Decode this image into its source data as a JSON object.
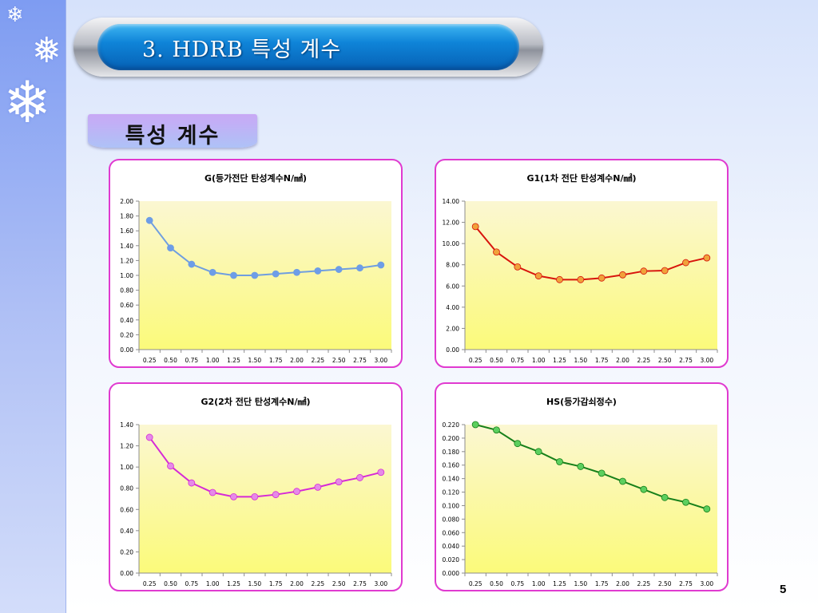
{
  "slide": {
    "title": "3. HDRB  특성 계수",
    "section_label": "특성 계수",
    "page_number": "5"
  },
  "colors": {
    "plot_bg_top": "#fbf7d2",
    "plot_bg_bottom": "#fbfa7a",
    "panel_border": "#e03ad0"
  },
  "chart_data": [
    {
      "type": "line",
      "title": "G(등가전단 탄성계수N/㎟)",
      "x": [
        "0.25",
        "0.50",
        "0.75",
        "1.00",
        "1.25",
        "1.50",
        "1.75",
        "2.00",
        "2.25",
        "2.50",
        "2.75",
        "3.00"
      ],
      "values": [
        1.74,
        1.37,
        1.15,
        1.04,
        1.0,
        1.0,
        1.02,
        1.04,
        1.06,
        1.08,
        1.1,
        1.14
      ],
      "ylim": [
        0,
        2.0
      ],
      "yticks": [
        "0.00",
        "0.20",
        "0.40",
        "0.60",
        "0.80",
        "1.00",
        "1.20",
        "1.40",
        "1.60",
        "1.80",
        "2.00"
      ],
      "line_color": "#6f9ee0",
      "marker_color": "#6d9de8",
      "grid": false,
      "legend": false
    },
    {
      "type": "line",
      "title": "G1(1차 전단 탄성계수N/㎟)",
      "x": [
        "0.25",
        "0.50",
        "0.75",
        "1.00",
        "1.25",
        "1.50",
        "1.75",
        "2.00",
        "2.25",
        "2.50",
        "2.75",
        "3.00"
      ],
      "values": [
        11.6,
        9.2,
        7.8,
        6.95,
        6.6,
        6.6,
        6.75,
        7.05,
        7.4,
        7.45,
        8.2,
        8.65
      ],
      "ylim": [
        0,
        14.0
      ],
      "yticks": [
        "0.00",
        "2.00",
        "4.00",
        "6.00",
        "8.00",
        "10.00",
        "12.00",
        "14.00"
      ],
      "line_color": "#d8140c",
      "marker_color": "#f0a23a",
      "grid": false,
      "legend": false
    },
    {
      "type": "line",
      "title": "G2(2차 전단 탄성계수N/㎟)",
      "x": [
        "0.25",
        "0.50",
        "0.75",
        "1.00",
        "1.25",
        "1.50",
        "1.75",
        "2.00",
        "2.25",
        "2.50",
        "2.75",
        "3.00"
      ],
      "values": [
        1.28,
        1.01,
        0.85,
        0.76,
        0.72,
        0.72,
        0.74,
        0.77,
        0.81,
        0.86,
        0.9,
        0.95
      ],
      "ylim": [
        0,
        1.4
      ],
      "yticks": [
        "0.00",
        "0.20",
        "0.40",
        "0.60",
        "0.80",
        "1.00",
        "1.20",
        "1.40"
      ],
      "line_color": "#d62ad6",
      "marker_color": "#e58ae8",
      "grid": false,
      "legend": false
    },
    {
      "type": "line",
      "title": "HS(등가감쇠정수)",
      "x": [
        "0.25",
        "0.50",
        "0.75",
        "1.00",
        "1.25",
        "1.50",
        "1.75",
        "2.00",
        "2.25",
        "2.50",
        "2.75",
        "3.00"
      ],
      "values": [
        0.22,
        0.212,
        0.192,
        0.18,
        0.165,
        0.158,
        0.148,
        0.136,
        0.124,
        0.112,
        0.105,
        0.095
      ],
      "ylim": [
        0,
        0.22
      ],
      "yticks": [
        "0.000",
        "0.020",
        "0.040",
        "0.060",
        "0.080",
        "0.100",
        "0.120",
        "0.140",
        "0.160",
        "0.180",
        "0.200",
        "0.220"
      ],
      "line_color": "#17801a",
      "marker_color": "#5ccf5e",
      "grid": false,
      "legend": false
    }
  ]
}
